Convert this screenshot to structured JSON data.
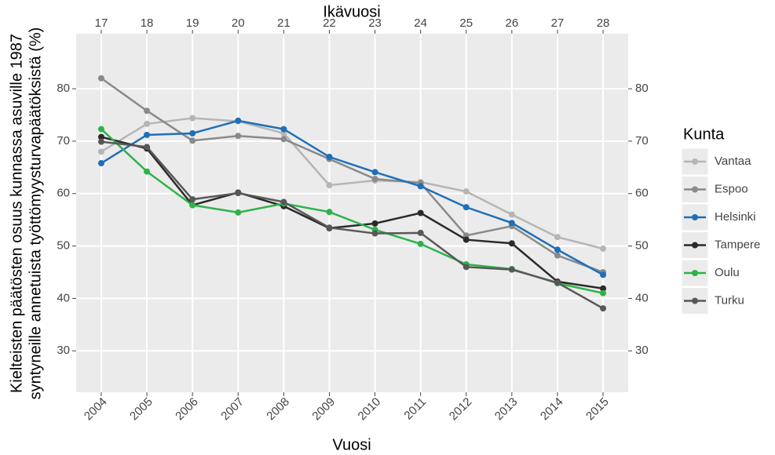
{
  "chart_data": {
    "type": "line",
    "xlabel": "Vuosi",
    "x2label": "Ikävuosi",
    "ylabel": [
      "Kielteisten päätösten osuus kunnassa asuville 1987",
      "syntyneille annetuista työttömyysturvapäätöksistä (%)"
    ],
    "legend_title": "Kunta",
    "legend_position": "right",
    "grid": true,
    "x": [
      2004,
      2005,
      2006,
      2007,
      2008,
      2009,
      2010,
      2011,
      2012,
      2013,
      2014,
      2015
    ],
    "xlim": [
      2003.45,
      2015.55
    ],
    "xticks": [
      2004,
      2005,
      2006,
      2007,
      2008,
      2009,
      2010,
      2011,
      2012,
      2013,
      2014,
      2015
    ],
    "x2lim": [
      16.45,
      28.55
    ],
    "x2ticks": [
      17,
      18,
      19,
      20,
      21,
      22,
      23,
      24,
      25,
      26,
      27,
      28
    ],
    "ylim": [
      22.1,
      90.5
    ],
    "yticks": [
      30,
      40,
      50,
      60,
      70,
      80
    ],
    "y2lim": [
      22.1,
      90.5
    ],
    "y2ticks": [
      30,
      40,
      50,
      60,
      70,
      80
    ],
    "series": [
      {
        "name": "Vantaa",
        "color": "#b5b5b5",
        "values": [
          68,
          73.3,
          74.4,
          73.8,
          71.5,
          61.6,
          62.5,
          62.2,
          60.4,
          56,
          51.7,
          49.5
        ]
      },
      {
        "name": "Espoo",
        "color": "#8a8a8a",
        "values": [
          82,
          75.8,
          70.1,
          71,
          70.4,
          66.6,
          62.8,
          62,
          52,
          53.8,
          48.2,
          45
        ]
      },
      {
        "name": "Helsinki",
        "color": "#1f6fb8",
        "values": [
          65.8,
          71.2,
          71.5,
          73.9,
          72.3,
          67,
          64.1,
          61.4,
          57.4,
          54.4,
          49.3,
          44.5
        ]
      },
      {
        "name": "Tampere",
        "color": "#2b2b2b",
        "values": [
          70.8,
          68.6,
          57.8,
          60.2,
          57.6,
          53.4,
          54.3,
          56.3,
          51.2,
          50.5,
          43.2,
          41.9
        ]
      },
      {
        "name": "Oulu",
        "color": "#2db34a",
        "values": [
          72.3,
          64.2,
          57.8,
          56.4,
          58.1,
          56.5,
          53.1,
          50.4,
          46.5,
          45.6,
          42.9,
          41
        ]
      },
      {
        "name": "Turku",
        "color": "#585858",
        "values": [
          69.9,
          68.9,
          58.9,
          60.1,
          58.4,
          53.5,
          52.4,
          52.5,
          46,
          45.5,
          43,
          38.1
        ]
      }
    ]
  }
}
